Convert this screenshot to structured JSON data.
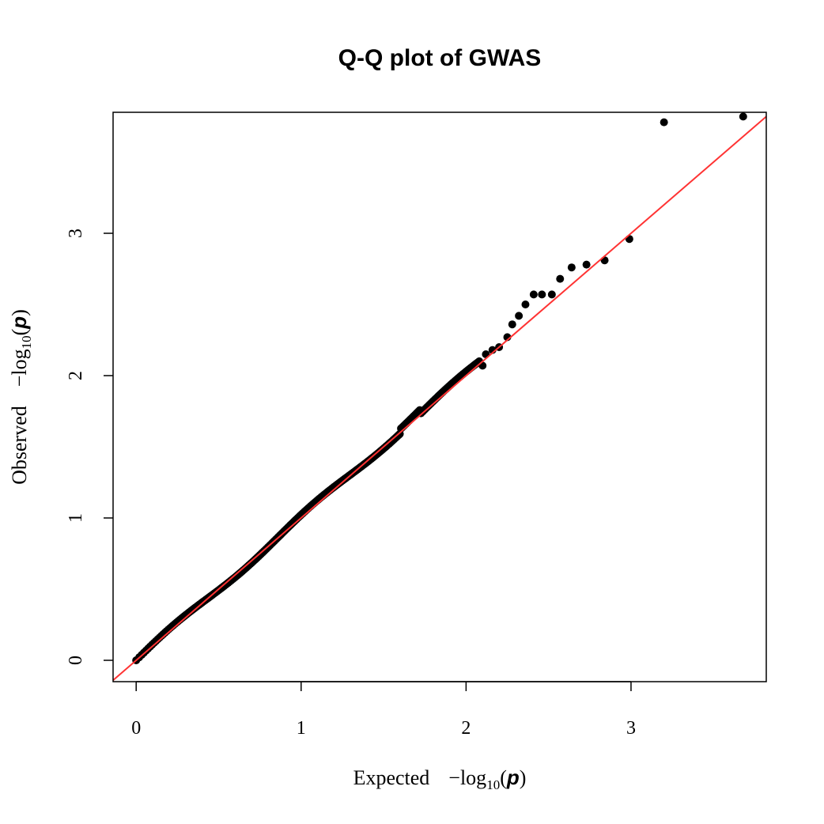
{
  "chart_data": {
    "type": "scatter",
    "title": "Q-Q plot of GWAS",
    "xlabel": {
      "prefix": "Expected",
      "neg": "−log",
      "sub": "10",
      "open": "(",
      "var": "p",
      "close": ")"
    },
    "ylabel": {
      "prefix": "Observed",
      "neg": "−log",
      "sub": "10",
      "open": "(",
      "var": "p",
      "close": ")"
    },
    "xlim": [
      -0.14,
      3.82
    ],
    "ylim": [
      -0.15,
      3.85
    ],
    "x_ticks": [
      0,
      1,
      2,
      3
    ],
    "x_tick_labels": [
      "0",
      "1",
      "2",
      "3"
    ],
    "y_ticks": [
      0,
      1,
      2,
      3
    ],
    "y_tick_labels": [
      "0",
      "1",
      "2",
      "3"
    ],
    "reference_line": {
      "slope": 1,
      "intercept": 0,
      "color": "#ff3333"
    },
    "point_color": "#000000",
    "outlier_points": [
      {
        "x": 2.1,
        "y": 2.07
      },
      {
        "x": 2.12,
        "y": 2.15
      },
      {
        "x": 2.16,
        "y": 2.18
      },
      {
        "x": 2.2,
        "y": 2.2
      },
      {
        "x": 2.25,
        "y": 2.27
      },
      {
        "x": 2.28,
        "y": 2.36
      },
      {
        "x": 2.32,
        "y": 2.42
      },
      {
        "x": 2.36,
        "y": 2.5
      },
      {
        "x": 2.41,
        "y": 2.57
      },
      {
        "x": 2.46,
        "y": 2.57
      },
      {
        "x": 2.52,
        "y": 2.57
      },
      {
        "x": 2.57,
        "y": 2.68
      },
      {
        "x": 2.64,
        "y": 2.76
      },
      {
        "x": 2.73,
        "y": 2.78
      },
      {
        "x": 2.84,
        "y": 2.81
      },
      {
        "x": 2.99,
        "y": 2.96
      },
      {
        "x": 3.2,
        "y": 3.78
      },
      {
        "x": 3.68,
        "y": 3.82
      }
    ],
    "bulk": {
      "n_points": 260,
      "x_min": 0.0,
      "x_max": 2.08
    }
  }
}
